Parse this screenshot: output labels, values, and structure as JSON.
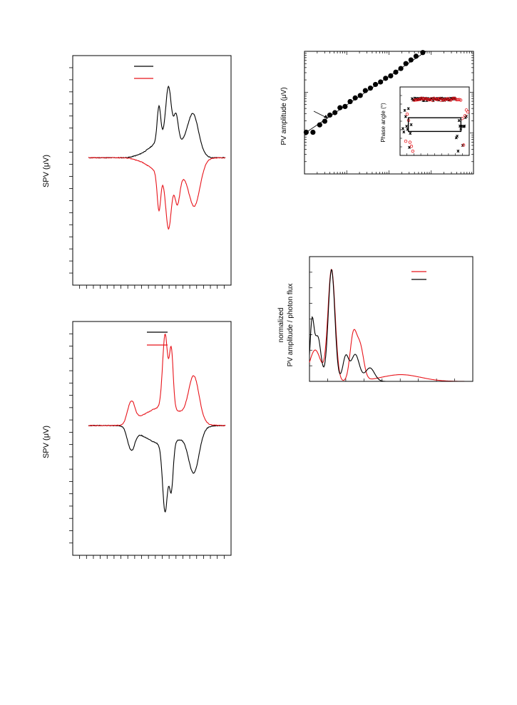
{
  "colors": {
    "black": "#000000",
    "red": "#e8141b",
    "axis": "#000000"
  },
  "labels": {
    "spv_ylabel_top": "SPV (μV)",
    "spv_ylabel_bottom": "SPV (μV)",
    "pv_amplitude_ylabel": "PV amplitude (μV)",
    "phase_angle_ylabel": "Phase angle (°)",
    "normalized_ylabel_line1": "normalized",
    "normalized_ylabel_line2": "PV amplitude / photon flux"
  },
  "chart_data": [
    {
      "id": "spv-top",
      "type": "line",
      "xlim": [
        0,
        1
      ],
      "ylim": [
        -1,
        1
      ],
      "x_tick_count": 23,
      "y_tick_count": 19,
      "legend": {
        "placement": "top-center"
      },
      "series": [
        {
          "color": "#000000",
          "sign": 1,
          "peaks": [
            {
              "x": 0.515,
              "amp": 0.3,
              "width": 0.013
            },
            {
              "x": 0.585,
              "amp": 0.44,
              "width": 0.02
            },
            {
              "x": 0.64,
              "amp": 0.22,
              "width": 0.016
            },
            {
              "x": 0.765,
              "amp": 0.34,
              "width": 0.04
            },
            {
              "x": 0.58,
              "amp": 0.18,
              "width": 0.11
            }
          ]
        },
        {
          "color": "#e8141b",
          "sign": -1,
          "peaks": [
            {
              "x": 0.515,
              "amp": 0.32,
              "width": 0.013
            },
            {
              "x": 0.585,
              "amp": 0.44,
              "width": 0.02
            },
            {
              "x": 0.65,
              "amp": 0.24,
              "width": 0.018
            },
            {
              "x": 0.775,
              "amp": 0.36,
              "width": 0.04
            },
            {
              "x": 0.6,
              "amp": 0.18,
              "width": 0.12
            }
          ]
        }
      ]
    },
    {
      "id": "spv-bottom",
      "type": "line",
      "xlim": [
        0,
        1
      ],
      "ylim": [
        -1,
        1
      ],
      "x_tick_count": 23,
      "y_tick_count": 19,
      "legend": {
        "placement": "top-center"
      },
      "series": [
        {
          "color": "#000000",
          "sign": -1,
          "peaks": [
            {
              "x": 0.3,
              "amp": 0.24,
              "width": 0.03
            },
            {
              "x": 0.56,
              "amp": 0.58,
              "width": 0.018
            },
            {
              "x": 0.605,
              "amp": 0.4,
              "width": 0.014
            },
            {
              "x": 0.77,
              "amp": 0.36,
              "width": 0.038
            },
            {
              "x": 0.55,
              "amp": 0.16,
              "width": 0.14
            }
          ]
        },
        {
          "color": "#e8141b",
          "sign": 1,
          "peaks": [
            {
              "x": 0.3,
              "amp": 0.24,
              "width": 0.03
            },
            {
              "x": 0.56,
              "amp": 0.62,
              "width": 0.018
            },
            {
              "x": 0.605,
              "amp": 0.5,
              "width": 0.014
            },
            {
              "x": 0.77,
              "amp": 0.38,
              "width": 0.038
            },
            {
              "x": 0.55,
              "amp": 0.16,
              "width": 0.14
            }
          ]
        }
      ]
    },
    {
      "id": "pv-amplitude",
      "type": "scatter",
      "x_scale": "log",
      "y_scale": "log",
      "xlim": [
        0,
        1
      ],
      "ylim": [
        0,
        1
      ],
      "points_x": [
        0.01,
        0.05,
        0.09,
        0.12,
        0.15,
        0.18,
        0.21,
        0.24,
        0.27,
        0.3,
        0.33,
        0.36,
        0.39,
        0.42,
        0.45,
        0.48,
        0.51,
        0.54,
        0.57,
        0.6,
        0.63,
        0.66,
        0.7
      ],
      "points_y": [
        0.34,
        0.34,
        0.4,
        0.43,
        0.48,
        0.5,
        0.54,
        0.55,
        0.59,
        0.62,
        0.64,
        0.68,
        0.7,
        0.73,
        0.75,
        0.78,
        0.8,
        0.83,
        0.86,
        0.9,
        0.93,
        0.96,
        0.99
      ],
      "fit_line": [
        [
          0.0,
          0.33
        ],
        [
          0.72,
          1.0
        ]
      ],
      "inset": {
        "type": "scatter",
        "plateau_level": 0.82,
        "rect": {
          "x0": 0.12,
          "x1": 0.88,
          "y0": 0.35,
          "y1": 0.55
        }
      }
    },
    {
      "id": "normalized-pv",
      "type": "line",
      "xlim": [
        0,
        1
      ],
      "ylim": [
        0,
        1
      ],
      "legend": {
        "placement": "top-right"
      },
      "series": [
        {
          "color": "#e8141b",
          "peaks": [
            {
              "x": 0.035,
              "amp": 0.28,
              "width": 0.035
            },
            {
              "x": 0.135,
              "amp": 1.0,
              "width": 0.022
            },
            {
              "x": 0.268,
              "amp": 0.4,
              "width": 0.02
            },
            {
              "x": 0.31,
              "amp": 0.3,
              "width": 0.022
            },
            {
              "x": 0.56,
              "amp": 0.06,
              "width": 0.12
            }
          ]
        },
        {
          "color": "#000000",
          "peaks": [
            {
              "x": 0.015,
              "amp": 0.48,
              "width": 0.012
            },
            {
              "x": 0.05,
              "amp": 0.4,
              "width": 0.02
            },
            {
              "x": 0.135,
              "amp": 1.0,
              "width": 0.02
            },
            {
              "x": 0.222,
              "amp": 0.22,
              "width": 0.018
            },
            {
              "x": 0.28,
              "amp": 0.24,
              "width": 0.025
            },
            {
              "x": 0.37,
              "amp": 0.12,
              "width": 0.028
            }
          ]
        }
      ]
    }
  ]
}
